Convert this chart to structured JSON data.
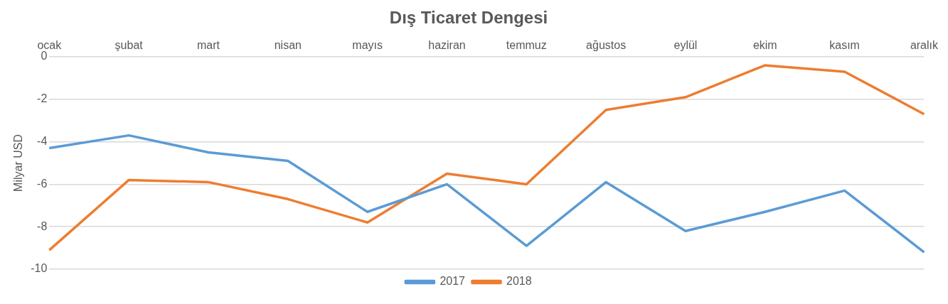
{
  "chart_data": {
    "type": "line",
    "title": "Dış Ticaret Dengesi",
    "ylabel": "Milyar USD",
    "categories": [
      "ocak",
      "şubat",
      "mart",
      "nisan",
      "mayıs",
      "haziran",
      "temmuz",
      "ağustos",
      "eylül",
      "ekim",
      "kasım",
      "aralık"
    ],
    "series": [
      {
        "name": "2017",
        "color": "#5b9bd5",
        "values": [
          -4.3,
          -3.7,
          -4.5,
          -4.9,
          -7.3,
          -6.0,
          -8.9,
          -5.9,
          -8.2,
          -7.3,
          -6.3,
          -9.2
        ]
      },
      {
        "name": "2018",
        "color": "#ed7d31",
        "values": [
          -9.1,
          -5.8,
          -5.9,
          -6.7,
          -7.8,
          -5.5,
          -6.0,
          -2.5,
          -1.9,
          -0.4,
          -0.7,
          -2.7
        ]
      }
    ],
    "ylim": [
      -10,
      0
    ],
    "yticks": [
      -10,
      -8,
      -6,
      -4,
      -2,
      0
    ],
    "grid": "y",
    "legend": "bottom",
    "marker": "none",
    "line_style": "solid"
  }
}
